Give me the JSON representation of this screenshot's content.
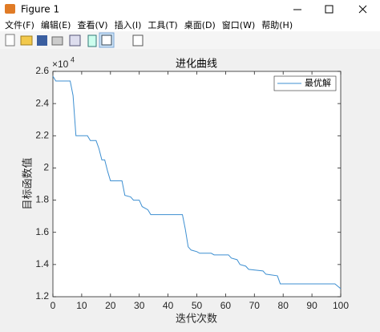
{
  "window": {
    "title": "Figure 1",
    "menu": [
      "文件(F)",
      "编辑(E)",
      "查看(V)",
      "插入(I)",
      "工具(T)",
      "桌面(D)",
      "窗口(W)",
      "帮助(H)"
    ]
  },
  "chart_data": {
    "type": "line",
    "title": "进化曲线",
    "x_label": "迭代次数",
    "y_label": "目标函数值",
    "y_exponent_base": "×10",
    "y_exponent": "4",
    "x": [
      0,
      1,
      6,
      7,
      8,
      12,
      13,
      15,
      16,
      17,
      18,
      19,
      20,
      24,
      25,
      27,
      28,
      30,
      31,
      33,
      34,
      45,
      46,
      47,
      48,
      50,
      51,
      55,
      56,
      61,
      62,
      64,
      65,
      67,
      68,
      73,
      74,
      78,
      79,
      98,
      100
    ],
    "series": [
      {
        "name": "最优解",
        "color": "#3d8fd1",
        "values": [
          2.57,
          2.54,
          2.54,
          2.45,
          2.2,
          2.2,
          2.17,
          2.17,
          2.12,
          2.05,
          2.05,
          1.98,
          1.92,
          1.92,
          1.83,
          1.82,
          1.8,
          1.8,
          1.76,
          1.74,
          1.71,
          1.71,
          1.62,
          1.51,
          1.49,
          1.48,
          1.47,
          1.47,
          1.46,
          1.46,
          1.44,
          1.43,
          1.4,
          1.39,
          1.37,
          1.36,
          1.34,
          1.33,
          1.28,
          1.28,
          1.25
        ]
      }
    ],
    "xlim": [
      0,
      100
    ],
    "xticks": [
      0,
      10,
      20,
      30,
      40,
      50,
      60,
      70,
      80,
      90,
      100
    ],
    "ylim": [
      1.2,
      2.6
    ],
    "yticks": [
      1.2,
      1.4,
      1.6,
      1.8,
      2,
      2.2,
      2.4,
      2.6
    ],
    "legend": "upper right"
  }
}
